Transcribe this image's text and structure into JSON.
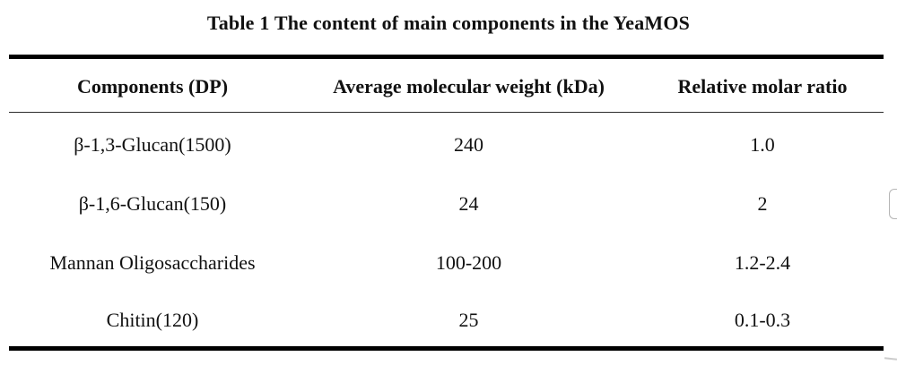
{
  "page": {
    "background": "#ffffff"
  },
  "caption": "Table 1 The content of main components in the YeaMOS",
  "table": {
    "headers": [
      "Components (DP)",
      "Average molecular weight (kDa)",
      "Relative molar ratio"
    ],
    "rows": [
      {
        "component": "β-1,3-Glucan(1500)",
        "avg_mw_kda": "240",
        "molar_ratio": "1.0"
      },
      {
        "component": "β-1,6-Glucan(150)",
        "avg_mw_kda": "24",
        "molar_ratio": "2"
      },
      {
        "component": "Mannan Oligosaccharides",
        "avg_mw_kda": "100-200",
        "molar_ratio": "1.2-2.4"
      },
      {
        "component": "Chitin(120)",
        "avg_mw_kda": "25",
        "molar_ratio": "0.1-0.3"
      }
    ]
  },
  "colors": {
    "text": "#111111",
    "rule": "#000000",
    "artifact_border": "#b5b5b5"
  }
}
